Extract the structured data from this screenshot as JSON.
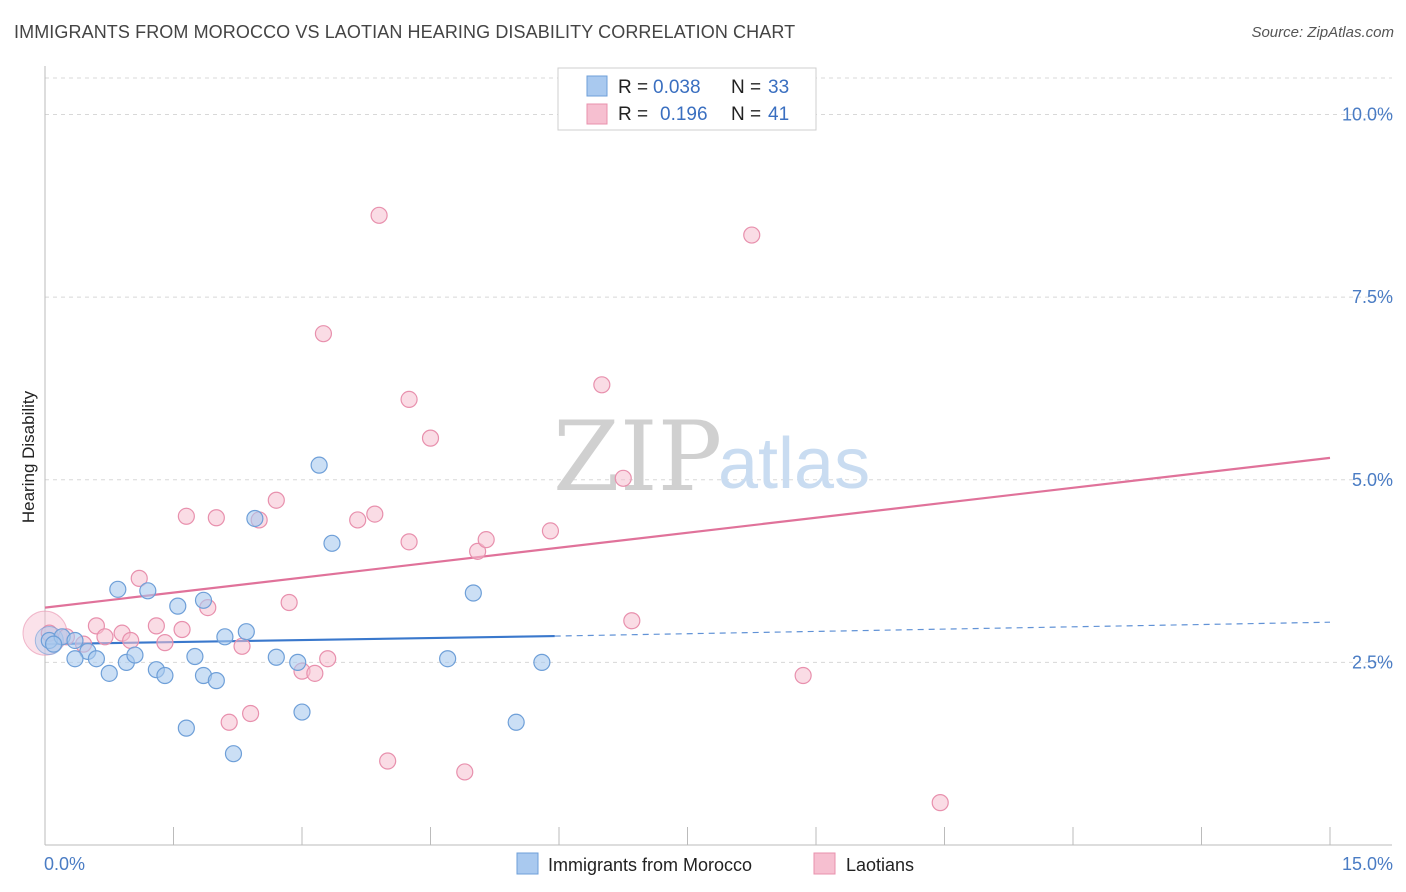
{
  "title": "IMMIGRANTS FROM MOROCCO VS LAOTIAN HEARING DISABILITY CORRELATION CHART",
  "source": "Source: ZipAtlas.com",
  "watermark": {
    "zip": "ZIP",
    "atlas": "atlas"
  },
  "legend": {
    "rows": [
      {
        "r_label": "R =",
        "r_value": "0.038",
        "n_label": "N =",
        "n_value": "33"
      },
      {
        "r_label": "R =",
        "r_value": "0.196",
        "n_label": "N =",
        "n_value": "41"
      }
    ]
  },
  "bottom_legend": [
    "Immigrants from Morocco",
    "Laotians"
  ],
  "colors": {
    "blue_fill": "#a9c9ef",
    "blue_stroke": "#6e9fd8",
    "blue_line": "#3a78cc",
    "pink_fill": "#f6bfd0",
    "pink_stroke": "#e890ad",
    "pink_line": "#e0729a",
    "grid": "#d8d8d8",
    "tick_label": "#4a7cc4"
  },
  "chart_data": {
    "type": "scatter",
    "title": "IMMIGRANTS FROM MOROCCO VS LAOTIAN HEARING DISABILITY CORRELATION CHART",
    "xlabel": "",
    "ylabel": "Hearing Disability",
    "xlim": [
      0,
      15
    ],
    "ylim": [
      0,
      10.5
    ],
    "x_tick_labels": [
      "0.0%",
      "15.0%"
    ],
    "y_ticks": [
      2.5,
      5.0,
      7.5,
      10.0
    ],
    "y_tick_labels": [
      "2.5%",
      "5.0%",
      "7.5%",
      "10.0%"
    ],
    "grid": true,
    "legend_position": "top-center",
    "series": [
      {
        "name": "Immigrants from Morocco",
        "color": "#a9c9ef",
        "points": [
          [
            0.05,
            2.8
          ],
          [
            0.2,
            2.85
          ],
          [
            0.35,
            2.8
          ],
          [
            0.5,
            2.65
          ],
          [
            0.6,
            2.55
          ],
          [
            0.35,
            2.55
          ],
          [
            0.75,
            2.35
          ],
          [
            0.85,
            3.5
          ],
          [
            0.95,
            2.5
          ],
          [
            1.05,
            2.6
          ],
          [
            1.2,
            3.48
          ],
          [
            1.3,
            2.4
          ],
          [
            1.4,
            2.32
          ],
          [
            1.55,
            3.27
          ],
          [
            1.75,
            2.58
          ],
          [
            1.85,
            2.32
          ],
          [
            2.0,
            2.25
          ],
          [
            2.1,
            2.85
          ],
          [
            1.65,
            1.6
          ],
          [
            2.2,
            1.25
          ],
          [
            1.85,
            3.35
          ],
          [
            2.35,
            2.92
          ],
          [
            2.45,
            4.47
          ],
          [
            2.7,
            2.57
          ],
          [
            2.95,
            2.5
          ],
          [
            3.0,
            1.82
          ],
          [
            3.2,
            5.2
          ],
          [
            3.35,
            4.13
          ],
          [
            4.7,
            2.55
          ],
          [
            5.0,
            3.45
          ],
          [
            5.8,
            2.5
          ],
          [
            5.5,
            1.68
          ],
          [
            0.1,
            2.75
          ]
        ],
        "trend": {
          "x": [
            0,
            5.95
          ],
          "y": [
            2.75,
            2.86
          ],
          "dashed_to": [
            15,
            3.05
          ]
        }
      },
      {
        "name": "Laotians",
        "color": "#f6bfd0",
        "points": [
          [
            0.05,
            2.9
          ],
          [
            0.25,
            2.85
          ],
          [
            0.45,
            2.75
          ],
          [
            0.6,
            3.0
          ],
          [
            0.7,
            2.85
          ],
          [
            0.9,
            2.9
          ],
          [
            1.0,
            2.8
          ],
          [
            1.1,
            3.65
          ],
          [
            1.3,
            3.0
          ],
          [
            1.4,
            2.77
          ],
          [
            1.6,
            2.95
          ],
          [
            1.65,
            4.5
          ],
          [
            1.9,
            3.25
          ],
          [
            2.0,
            4.48
          ],
          [
            2.15,
            1.68
          ],
          [
            2.3,
            2.72
          ],
          [
            2.4,
            1.8
          ],
          [
            2.5,
            4.45
          ],
          [
            2.7,
            4.72
          ],
          [
            2.85,
            3.32
          ],
          [
            3.0,
            2.38
          ],
          [
            3.15,
            2.35
          ],
          [
            3.3,
            2.55
          ],
          [
            3.25,
            7.0
          ],
          [
            3.65,
            4.45
          ],
          [
            3.85,
            4.53
          ],
          [
            3.9,
            8.62
          ],
          [
            4.0,
            1.15
          ],
          [
            4.25,
            4.15
          ],
          [
            4.25,
            6.1
          ],
          [
            4.5,
            5.57
          ],
          [
            4.9,
            1.0
          ],
          [
            5.05,
            4.02
          ],
          [
            5.15,
            4.18
          ],
          [
            5.9,
            4.3
          ],
          [
            6.5,
            6.3
          ],
          [
            6.75,
            5.02
          ],
          [
            6.85,
            3.07
          ],
          [
            8.25,
            8.35
          ],
          [
            8.85,
            2.32
          ],
          [
            10.45,
            0.58
          ]
        ],
        "trend": {
          "x": [
            0,
            15
          ],
          "y": [
            3.25,
            5.3
          ]
        }
      }
    ]
  }
}
